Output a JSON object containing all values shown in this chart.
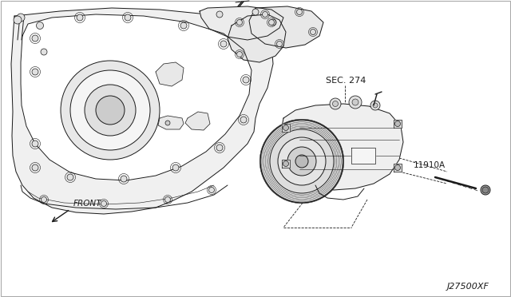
{
  "bg_color": "#ffffff",
  "line_color": "#1a1a1a",
  "label_sec": "SEC. 274",
  "label_part": "11910A",
  "label_front": "FRONT",
  "label_code": "J27500XF",
  "fig_width": 6.4,
  "fig_height": 3.72,
  "dpi": 100,
  "lw": 0.7,
  "border_color": "#aaaaaa"
}
